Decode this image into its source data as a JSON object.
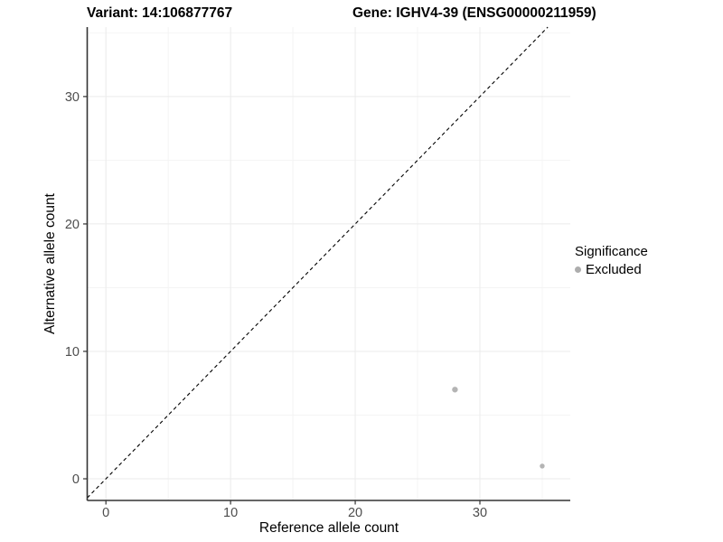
{
  "header": {
    "variant_title": "Variant: 14:106877767",
    "gene_title": "Gene: IGHV4-39 (ENSG00000211959)"
  },
  "chart_data": {
    "type": "scatter",
    "title_left": "Variant: 14:106877767",
    "title_right": "Gene: IGHV4-39 (ENSG00000211959)",
    "xlabel": "Reference allele count",
    "ylabel": "Alternative allele count",
    "xlim": [
      -1.5,
      37.25
    ],
    "ylim": [
      -1.7,
      35.45
    ],
    "xticks": [
      0,
      10,
      20,
      30
    ],
    "yticks": [
      0,
      10,
      20,
      30
    ],
    "minor_xticks": [
      5,
      15,
      25,
      35
    ],
    "minor_yticks": [
      5,
      15,
      25,
      35
    ],
    "grid": true,
    "identity_line": {
      "slope": 1,
      "intercept": 0,
      "style": "dashed",
      "color": "#000000"
    },
    "points": [
      {
        "x": 28,
        "y": 7,
        "significance": "Excluded",
        "r": 3.2
      },
      {
        "x": 35,
        "y": 1,
        "significance": "Excluded",
        "r": 2.7
      }
    ],
    "point_color": "#b4b4b4",
    "legend": {
      "title": "Significance",
      "position": "right",
      "items": [
        {
          "label": "Excluded",
          "color": "#adadad"
        }
      ]
    },
    "colors": {
      "axis_line": "#333333",
      "tick_label": "#4d4d4d",
      "grid_major": "#ebebeb",
      "grid_minor": "#f4f4f4",
      "background": "#ffffff"
    }
  }
}
